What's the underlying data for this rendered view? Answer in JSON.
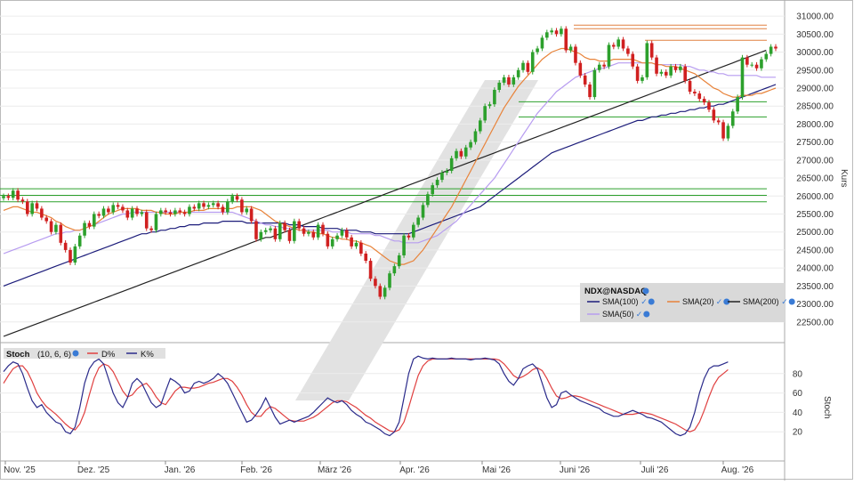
{
  "chart_data": {
    "type": "candlestick",
    "price_panel": {
      "ylabel": "Kurs",
      "ylim": [
        22000,
        31250
      ],
      "yticks": [
        22500,
        23000,
        23500,
        24000,
        24500,
        25000,
        25500,
        26000,
        26500,
        27000,
        27500,
        28000,
        28500,
        29000,
        29500,
        30000,
        30500,
        31000
      ],
      "ytick_labels": [
        "22500.00",
        "23000.00",
        "23500.00",
        "24000.00",
        "24500.00",
        "25000.00",
        "25500.00",
        "26000.00",
        "26500.00",
        "27000.00",
        "27500.00",
        "28000.00",
        "28500.00",
        "29000.00",
        "29500.00",
        "30000.00",
        "30500.00",
        "31000.00"
      ],
      "candles_close": [
        26000,
        25950,
        26150,
        25900,
        25850,
        25500,
        25800,
        25650,
        25400,
        25300,
        25000,
        25200,
        24700,
        24500,
        24150,
        24600,
        24900,
        25250,
        25150,
        25500,
        25450,
        25650,
        25550,
        25750,
        25700,
        25600,
        25400,
        25650,
        25500,
        25550,
        25100,
        25050,
        25500,
        25600,
        25550,
        25500,
        25600,
        25550,
        25500,
        25700,
        25650,
        25800,
        25700,
        25750,
        25800,
        25700,
        25550,
        25850,
        26000,
        25900,
        25550,
        25650,
        25300,
        24800,
        25000,
        25050,
        25100,
        24800,
        25250,
        25050,
        24750,
        25300,
        25100,
        24950,
        25000,
        24850,
        25200,
        24950,
        24600,
        24800,
        24900,
        25050,
        24850,
        24600,
        24700,
        24400,
        24200,
        23700,
        23500,
        23200,
        23450,
        23850,
        24050,
        24350,
        24900,
        24850,
        25200,
        25400,
        25750,
        26050,
        26300,
        26450,
        26650,
        26700,
        27050,
        27250,
        27100,
        27350,
        27500,
        27800,
        28100,
        28500,
        28550,
        28950,
        29150,
        29300,
        29100,
        29300,
        29500,
        29700,
        29450,
        30000,
        30100,
        30400,
        30550,
        30600,
        30500,
        30650,
        30050,
        30150,
        29700,
        29350,
        29100,
        28750,
        29500,
        29650,
        29600,
        30200,
        30150,
        30350,
        30100,
        29950,
        29600,
        29200,
        29300,
        30250,
        29850,
        29400,
        29450,
        29350,
        29600,
        29500,
        29600,
        29200,
        28900,
        28850,
        28700,
        28600,
        28400,
        28100,
        28050,
        27600,
        27950,
        28350,
        28750,
        29850,
        29650,
        29650,
        29550,
        29800,
        29950,
        30150,
        30100
      ],
      "horizontal_lines": [
        {
          "value": 30750,
          "color": "#e08040"
        },
        {
          "value": 30650,
          "color": "#e08040"
        },
        {
          "value": 30330,
          "color": "#e08040"
        },
        {
          "value": 28620,
          "color": "#2ca02c"
        },
        {
          "value": 28200,
          "color": "#2ca02c"
        },
        {
          "value": 26200,
          "color": "#2ca02c"
        },
        {
          "value": 26020,
          "color": "#2ca02c"
        },
        {
          "value": 25840,
          "color": "#2ca02c"
        }
      ],
      "sma20": [
        25600,
        25650,
        25700,
        25700,
        25650,
        25600,
        25550,
        25550,
        25500,
        25450,
        25400,
        25300,
        25250,
        25150,
        25100,
        25050,
        25050,
        25100,
        25150,
        25200,
        25300,
        25400,
        25500,
        25550,
        25600,
        25650,
        25650,
        25650,
        25650,
        25600,
        25600,
        25600,
        25550,
        25550,
        25500,
        25500,
        25500,
        25550,
        25550,
        25550,
        25600,
        25600,
        25600,
        25650,
        25650,
        25650,
        25650,
        25650,
        25650,
        25700,
        25700,
        25700,
        25700,
        25650,
        25600,
        25500,
        25400,
        25300,
        25250,
        25200,
        25150,
        25100,
        25050,
        25050,
        25000,
        25000,
        24950,
        24950,
        24900,
        24850,
        24850,
        24800,
        24800,
        24750,
        24750,
        24700,
        24650,
        24600,
        24500,
        24400,
        24300,
        24200,
        24150,
        24100,
        24100,
        24150,
        24200,
        24350,
        24500,
        24700,
        24900,
        25100,
        25300,
        25500,
        25700,
        25950,
        26200,
        26450,
        26700,
        26950,
        27200,
        27450,
        27700,
        27950,
        28200,
        28450,
        28650,
        28850,
        29050,
        29200,
        29350,
        29500,
        29650,
        29800,
        29900,
        30000,
        30050,
        30100,
        30100,
        30050,
        30000,
        29950,
        29850,
        29800,
        29800,
        29750,
        29750,
        29750,
        29800,
        29800,
        29800,
        29800,
        29800,
        29750,
        29700,
        29700,
        29700,
        29650,
        29650,
        29600,
        29600,
        29600,
        29550,
        29500,
        29450,
        29400,
        29300,
        29200,
        29100,
        29000,
        28950,
        28850,
        28800,
        28750,
        28750,
        28800,
        28800,
        28800,
        28850,
        28850,
        28900,
        28950,
        29000
      ],
      "sma50": [
        24400,
        24450,
        24500,
        24550,
        24600,
        24650,
        24700,
        24750,
        24800,
        24850,
        24900,
        24950,
        24950,
        25000,
        25000,
        25050,
        25050,
        25100,
        25150,
        25200,
        25250,
        25300,
        25350,
        25400,
        25450,
        25500,
        25500,
        25550,
        25550,
        25550,
        25550,
        25550,
        25550,
        25550,
        25550,
        25550,
        25550,
        25550,
        25550,
        25550,
        25550,
        25550,
        25550,
        25550,
        25550,
        25550,
        25550,
        25550,
        25550,
        25500,
        25450,
        25400,
        25350,
        25300,
        25250,
        25200,
        25200,
        25150,
        25150,
        25100,
        25100,
        25100,
        25050,
        25050,
        25050,
        25050,
        25050,
        25050,
        25050,
        25000,
        25000,
        25000,
        25000,
        24950,
        24950,
        24950,
        24950,
        24950,
        24900,
        24900,
        24850,
        24800,
        24750,
        24750,
        24700,
        24700,
        24700,
        24700,
        24750,
        24800,
        24850,
        24900,
        25000,
        25100,
        25200,
        25300,
        25450,
        25600,
        25750,
        25900,
        26050,
        26200,
        26350,
        26500,
        26700,
        26900,
        27100,
        27300,
        27500,
        27700,
        27900,
        28100,
        28300,
        28450,
        28600,
        28750,
        28900,
        29000,
        29100,
        29200,
        29300,
        29350,
        29400,
        29450,
        29500,
        29550,
        29550,
        29600,
        29650,
        29700,
        29700,
        29700,
        29700,
        29700,
        29700,
        29700,
        29700,
        29650,
        29650,
        29650,
        29650,
        29650,
        29650,
        29600,
        29600,
        29550,
        29500,
        29500,
        29450,
        29450,
        29400,
        29400,
        29350,
        29350,
        29350,
        29350,
        29350,
        29350,
        29350,
        29300,
        29300,
        29300,
        29300
      ],
      "sma100": [
        23500,
        23550,
        23600,
        23650,
        23700,
        23750,
        23800,
        23850,
        23900,
        23950,
        24000,
        24050,
        24100,
        24150,
        24200,
        24250,
        24300,
        24350,
        24400,
        24450,
        24500,
        24550,
        24600,
        24650,
        24700,
        24750,
        24800,
        24850,
        24900,
        24950,
        24950,
        25000,
        25000,
        25050,
        25050,
        25100,
        25100,
        25150,
        25150,
        25200,
        25200,
        25200,
        25250,
        25250,
        25250,
        25250,
        25300,
        25300,
        25300,
        25300,
        25300,
        25250,
        25250,
        25250,
        25250,
        25250,
        25250,
        25250,
        25250,
        25250,
        25200,
        25200,
        25200,
        25150,
        25150,
        25150,
        25150,
        25100,
        25100,
        25100,
        25100,
        25050,
        25050,
        25050,
        25050,
        25000,
        25000,
        25000,
        24950,
        24950,
        24950,
        24950,
        24950,
        24950,
        24950,
        24950,
        25000,
        25050,
        25100,
        25150,
        25200,
        25250,
        25300,
        25350,
        25400,
        25450,
        25500,
        25550,
        25600,
        25650,
        25700,
        25800,
        25900,
        26000,
        26100,
        26200,
        26300,
        26400,
        26500,
        26600,
        26700,
        26800,
        26900,
        27000,
        27100,
        27200,
        27250,
        27300,
        27350,
        27400,
        27450,
        27500,
        27550,
        27600,
        27650,
        27700,
        27750,
        27800,
        27850,
        27900,
        27950,
        28000,
        28050,
        28100,
        28100,
        28150,
        28200,
        28200,
        28250,
        28250,
        28300,
        28300,
        28350,
        28350,
        28400,
        28400,
        28450,
        28450,
        28500,
        28500,
        28550,
        28550,
        28600,
        28650,
        28700,
        28750,
        28800,
        28850,
        28900,
        28950,
        29000,
        29050,
        29100
      ],
      "sma200": [
        22100,
        22150,
        22200,
        22250,
        22300,
        22350,
        22400,
        22450,
        22500,
        22550,
        22600,
        22650,
        22700,
        22750,
        22800,
        22850,
        22900,
        22950,
        23000,
        23050,
        23100,
        23150,
        23200,
        23250,
        23300,
        23350,
        23400,
        23450,
        23500,
        23550,
        23600,
        23650,
        23700,
        23750,
        23800,
        23850,
        23900,
        23950,
        24000,
        24050,
        24100,
        24150,
        24200,
        24250,
        24300,
        24350,
        24400,
        24450,
        24500,
        24550,
        24600,
        24650,
        24700,
        24750,
        24800,
        24850,
        24850,
        24900,
        24950,
        25000,
        25050,
        25100,
        25150,
        25200,
        25250,
        25300,
        25350,
        25400,
        25450,
        25500,
        25550,
        25600,
        25650,
        25700,
        25750,
        25800,
        25850,
        25900,
        25950,
        26000,
        26050,
        26100,
        26150,
        26200,
        26250,
        26300,
        26350,
        26400,
        26450,
        26500,
        26550,
        26600,
        26650,
        26700,
        26750,
        26800,
        26850,
        26900,
        26950,
        27000,
        27050,
        27100,
        27150,
        27200,
        27250,
        27300,
        27350,
        27400,
        27450,
        27500,
        27550,
        27600,
        27650,
        27700,
        27750,
        27800,
        27850,
        27900,
        27950,
        28000,
        28050,
        28100,
        28150,
        28200,
        28250,
        28300,
        28350,
        28400,
        28450,
        28500,
        28550,
        28600,
        28650,
        28700,
        28750,
        28800,
        28850,
        28900,
        28950,
        29000,
        29050,
        29100,
        29150,
        29200,
        29250,
        29300,
        29350,
        29400,
        29450,
        29500,
        29550,
        29600,
        29650,
        29700,
        29750,
        29800,
        29850,
        29900,
        29950,
        30000,
        30050
      ]
    },
    "legend": {
      "symbol": "NDX@NASDAQ",
      "items": [
        {
          "label": "SMA(100)",
          "color": "#1c1c7a"
        },
        {
          "label": "SMA(20)",
          "color": "#e8833a"
        },
        {
          "label": "SMA(200)",
          "color": "#222222"
        },
        {
          "label": "SMA(50)",
          "color": "#b79cf0"
        }
      ]
    },
    "stoch_panel": {
      "title": "Stoch",
      "params": "(10, 6, 6)",
      "ylabel": "Stoch",
      "ylim": [
        0,
        100
      ],
      "yticks": [
        20,
        40,
        60,
        80
      ],
      "series": [
        {
          "name": "D%",
          "color": "#e04040"
        },
        {
          "name": "K%",
          "color": "#2a2a8a"
        }
      ],
      "k": [
        82,
        88,
        92,
        90,
        80,
        65,
        52,
        45,
        48,
        40,
        35,
        30,
        28,
        20,
        18,
        25,
        45,
        70,
        85,
        92,
        95,
        90,
        75,
        60,
        50,
        45,
        55,
        70,
        75,
        70,
        60,
        50,
        45,
        48,
        62,
        75,
        72,
        68,
        60,
        62,
        70,
        72,
        70,
        72,
        75,
        80,
        76,
        70,
        60,
        50,
        40,
        30,
        32,
        38,
        45,
        55,
        45,
        35,
        28,
        30,
        32,
        30,
        32,
        34,
        36,
        40,
        45,
        50,
        55,
        52,
        50,
        52,
        48,
        42,
        38,
        35,
        30,
        28,
        25,
        22,
        18,
        16,
        20,
        30,
        55,
        80,
        95,
        98,
        96,
        95,
        96,
        95,
        95,
        95,
        96,
        95,
        95,
        95,
        94,
        95,
        95,
        96,
        95,
        94,
        90,
        80,
        72,
        68,
        75,
        85,
        88,
        90,
        85,
        70,
        55,
        45,
        48,
        60,
        62,
        58,
        55,
        52,
        50,
        48,
        46,
        44,
        40,
        38,
        36,
        36,
        38,
        40,
        42,
        40,
        38,
        35,
        34,
        32,
        30,
        26,
        22,
        18,
        16,
        18,
        25,
        40,
        60,
        75,
        85,
        88,
        88,
        90,
        92
      ],
      "d": [
        70,
        78,
        85,
        88,
        88,
        82,
        72,
        60,
        52,
        46,
        42,
        38,
        33,
        28,
        24,
        22,
        28,
        40,
        58,
        75,
        86,
        90,
        88,
        82,
        72,
        62,
        56,
        58,
        64,
        68,
        70,
        64,
        56,
        50,
        48,
        55,
        62,
        66,
        66,
        65,
        65,
        66,
        68,
        70,
        71,
        73,
        75,
        75,
        72,
        66,
        58,
        48,
        40,
        36,
        36,
        42,
        46,
        44,
        40,
        36,
        32,
        31,
        31,
        31,
        33,
        35,
        38,
        42,
        46,
        50,
        52,
        52,
        51,
        48,
        45,
        41,
        37,
        34,
        30,
        27,
        24,
        21,
        20,
        22,
        30,
        45,
        62,
        78,
        88,
        93,
        95,
        95,
        95,
        95,
        95,
        95,
        95,
        95,
        95,
        95,
        95,
        95,
        95,
        95,
        94,
        90,
        84,
        78,
        75,
        77,
        80,
        84,
        86,
        83,
        75,
        65,
        57,
        54,
        55,
        57,
        57,
        56,
        54,
        52,
        50,
        48,
        46,
        44,
        42,
        40,
        38,
        38,
        38,
        39,
        40,
        39,
        38,
        36,
        34,
        32,
        30,
        28,
        25,
        22,
        20,
        22,
        30,
        42,
        56,
        68,
        76,
        80,
        84
      ]
    },
    "x_axis": {
      "labels": [
        "Nov. '25",
        "Dez. '25",
        "Jan. '26",
        "Feb. '26",
        "März '26",
        "Apr. '26",
        "Mai '26",
        "Juni '26",
        "Juli '26",
        "Aug. '26"
      ]
    }
  }
}
